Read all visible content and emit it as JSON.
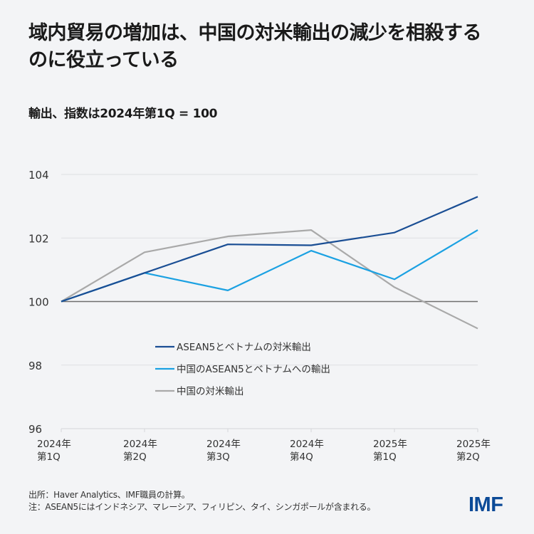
{
  "title": "域内貿易の増加は、中国の対米輸出の減少を相殺するのに役立っている",
  "subtitle": "輸出、指数は2024年第1Q = 100",
  "footer": {
    "source": "出所：Haver Analytics、IMF職員の計算。",
    "note": "注：ASEAN5にはインドネシア、マレーシア、フィリピン、タイ、シンガポールが含まれる。"
  },
  "logo": "IMF",
  "chart_data": {
    "type": "line",
    "title": "域内貿易の増加は、中国の対米輸出の減少を相殺するのに役立っている",
    "subtitle": "輸出、指数は2024年第1Q = 100",
    "xlabel": "",
    "ylabel": "",
    "x": [
      [
        "2024年",
        "第1Q"
      ],
      [
        "2024年",
        "第2Q"
      ],
      [
        "2024年",
        "第3Q"
      ],
      [
        "2024年",
        "第4Q"
      ],
      [
        "2025年",
        "第1Q"
      ],
      [
        "2025年",
        "第2Q"
      ]
    ],
    "ylim": [
      96,
      104
    ],
    "yticks": [
      96,
      98,
      100,
      102,
      104
    ],
    "grid": true,
    "baseline": 100,
    "legend_position": "center",
    "series": [
      {
        "name": "ASEAN5とベトナムの対米輸出",
        "color": "#1a4e94",
        "values": [
          100,
          100.9,
          101.8,
          101.77,
          102.17,
          103.3
        ]
      },
      {
        "name": "中国のASEAN5とベトナムへの輸出",
        "color": "#1ba1e2",
        "values": [
          100,
          100.9,
          100.35,
          101.6,
          100.7,
          102.25
        ]
      },
      {
        "name": "中国の対米輸出",
        "color": "#a9a9a9",
        "values": [
          100,
          101.55,
          102.05,
          102.25,
          100.45,
          99.15
        ]
      }
    ]
  }
}
